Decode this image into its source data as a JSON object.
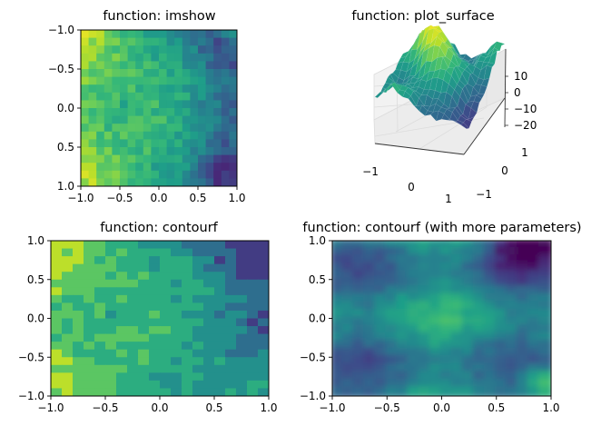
{
  "chart_data": [
    {
      "type": "heatmap",
      "title": "function: imshow",
      "xlim": [
        -1.0,
        1.0
      ],
      "ylim": [
        1.0,
        -1.0
      ],
      "y_inverted": true,
      "xticks": [
        "−1.0",
        "−0.5",
        "0.0",
        "0.5",
        "1.0"
      ],
      "yticks": [
        "−1.0",
        "−0.5",
        "0.0",
        "0.5",
        "1.0"
      ],
      "grid": false,
      "colormap": "viridis"
    },
    {
      "type": "surface",
      "title": "function: plot_surface",
      "xticks": [
        "−1",
        "0",
        "1"
      ],
      "yticks": [
        "−1",
        "0",
        "1"
      ],
      "zticks": [
        "10",
        "0",
        "−10",
        "−20"
      ],
      "zlim": [
        -22,
        14
      ],
      "colormap": "viridis"
    },
    {
      "type": "heatmap",
      "title": "function: contourf",
      "xlim": [
        -1.0,
        1.0
      ],
      "ylim": [
        -1.0,
        1.0
      ],
      "xticks": [
        "−1.0",
        "−0.5",
        "0.0",
        "0.5",
        "1.0"
      ],
      "yticks": [
        "−1.0",
        "−0.5",
        "0.0",
        "0.5",
        "1.0"
      ],
      "grid": false,
      "colormap": "viridis"
    },
    {
      "type": "heatmap",
      "title": "function: contourf (with more parameters)",
      "xlim": [
        -1.0,
        1.0
      ],
      "ylim": [
        -1.0,
        1.0
      ],
      "xticks": [
        "−1.0",
        "−0.5",
        "0.0",
        "0.5",
        "1.0"
      ],
      "yticks": [
        "−1.0",
        "−0.5",
        "0.0",
        "0.5",
        "1.0"
      ],
      "grid": false,
      "colormap": "viridis"
    }
  ],
  "colors": {
    "viridis": [
      "#440154",
      "#482878",
      "#3e4989",
      "#31688e",
      "#26828e",
      "#1f9e89",
      "#35b779",
      "#6ece58",
      "#b5de2b",
      "#fde725"
    ],
    "pane": "#f2f2f2",
    "grid": "#dcdcdc"
  }
}
